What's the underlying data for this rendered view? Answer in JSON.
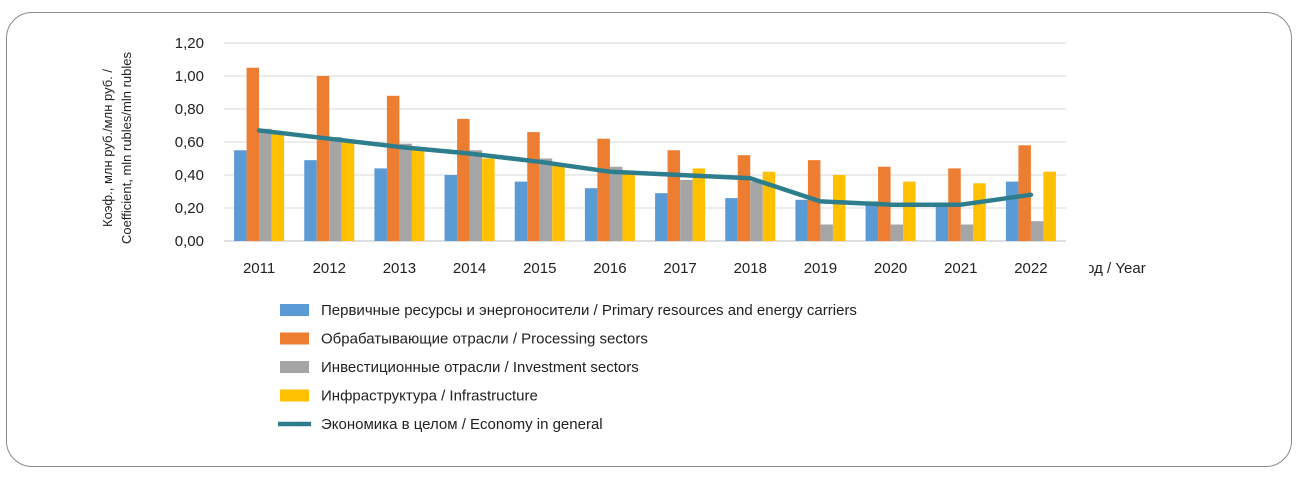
{
  "chart_data": {
    "type": "bar",
    "categories": [
      "2011",
      "2012",
      "2013",
      "2014",
      "2015",
      "2016",
      "2017",
      "2018",
      "2019",
      "2020",
      "2021",
      "2022"
    ],
    "ylabel_line1": "Коэф., млн руб./млн руб. /",
    "ylabel_line2": "Coefficient, mln rubles/mln rubles",
    "xlabel": "Год / Year",
    "ylim": [
      0,
      1.2
    ],
    "yticks": [
      "0,00",
      "0,20",
      "0,40",
      "0,60",
      "0,80",
      "1,00",
      "1,20"
    ],
    "ytick_values": [
      0,
      0.2,
      0.4,
      0.6,
      0.8,
      1.0,
      1.2
    ],
    "grid": true,
    "legend_position": "bottom",
    "series": [
      {
        "name": "Первичные ресурсы и энергоносители / Primary resources and energy carriers",
        "kind": "bar",
        "color": "#5b9bd5",
        "values": [
          0.55,
          0.49,
          0.44,
          0.4,
          0.36,
          0.32,
          0.29,
          0.26,
          0.25,
          0.24,
          0.23,
          0.36
        ]
      },
      {
        "name": "Обрабатывающие отрасли / Processing sectors",
        "kind": "bar",
        "color": "#ed7d31",
        "values": [
          1.05,
          1.0,
          0.88,
          0.74,
          0.66,
          0.62,
          0.55,
          0.52,
          0.49,
          0.45,
          0.44,
          0.58
        ]
      },
      {
        "name": "Инвестиционные отрасли / Investment sectors",
        "kind": "bar",
        "color": "#a5a5a5",
        "values": [
          0.68,
          0.63,
          0.59,
          0.55,
          0.5,
          0.45,
          0.37,
          0.36,
          0.1,
          0.1,
          0.1,
          0.12
        ]
      },
      {
        "name": "Инфраструктура / Infrastructure",
        "kind": "bar",
        "color": "#ffc000",
        "values": [
          0.65,
          0.6,
          0.56,
          0.5,
          0.46,
          0.42,
          0.44,
          0.42,
          0.4,
          0.36,
          0.35,
          0.42
        ]
      },
      {
        "name": "Экономика в целом / Economy in general",
        "kind": "line",
        "color": "#2e7d8c",
        "values": [
          0.67,
          0.62,
          0.57,
          0.53,
          0.48,
          0.42,
          0.4,
          0.38,
          0.24,
          0.22,
          0.22,
          0.28
        ]
      }
    ]
  }
}
